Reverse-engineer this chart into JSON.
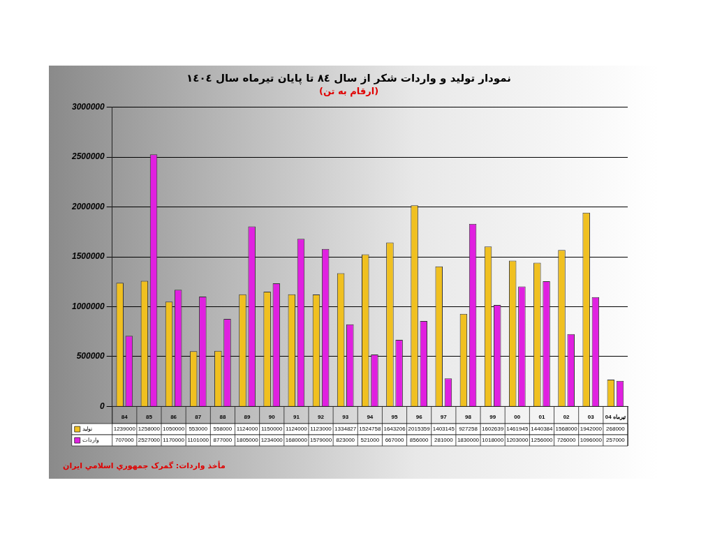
{
  "chart_data": {
    "type": "bar",
    "title": "نمودار تولید و واردات شکر از سال ۸٤ تا پایان تیرماه سال ۱٤۰٤",
    "subtitle": "(ارقام به تن)",
    "categories": [
      "84",
      "85",
      "86",
      "87",
      "88",
      "89",
      "90",
      "91",
      "92",
      "93",
      "94",
      "95",
      "96",
      "97",
      "98",
      "99",
      "00",
      "01",
      "02",
      "03",
      "تیرماه 04"
    ],
    "series": [
      {
        "name": "تولید",
        "color": "#f0c020",
        "values": [
          1239000,
          1258000,
          1050000,
          553000,
          558000,
          1124000,
          1150000,
          1124000,
          1123000,
          1334827,
          1524758,
          1643206,
          2015359,
          1403145,
          927258,
          1602639,
          1461945,
          1440384,
          1568000,
          1942000,
          268000
        ]
      },
      {
        "name": "واردات",
        "color": "#e020e0",
        "values": [
          707000,
          2527000,
          1170000,
          1101000,
          877000,
          1805000,
          1234000,
          1680000,
          1579000,
          823000,
          521000,
          667000,
          856000,
          281000,
          1830000,
          1018000,
          1203000,
          1256000,
          726000,
          1096000,
          257000
        ]
      }
    ],
    "ylim": [
      0,
      3000000
    ],
    "yticks": [
      0,
      500000,
      1000000,
      1500000,
      2000000,
      2500000,
      3000000
    ],
    "grid": "y",
    "legend": "bottom",
    "data_labels": true,
    "annotations": [
      "مأخذ واردات: گمرک جمهوري اسلامي ايران"
    ]
  }
}
